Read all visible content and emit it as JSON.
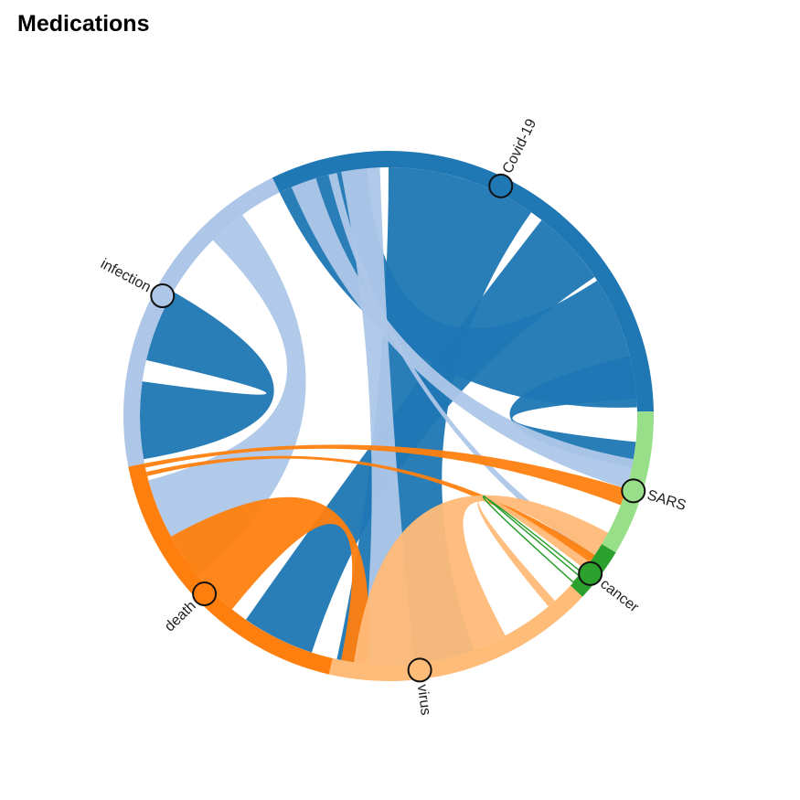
{
  "title": "Medications",
  "colors": {
    "Covid-19": "#1f77b4",
    "infection": "#aec7e8",
    "death": "#ff7f0e",
    "virus": "#ffbb78",
    "cancer": "#2ca02c",
    "SARS": "#98df8a"
  },
  "chart_data": {
    "type": "chord",
    "nodes": [
      {
        "name": "Covid-19"
      },
      {
        "name": "SARS"
      },
      {
        "name": "cancer"
      },
      {
        "name": "virus"
      },
      {
        "name": "death"
      },
      {
        "name": "infection"
      }
    ],
    "links": [
      {
        "source": "Covid-19",
        "target": "Covid-19"
      },
      {
        "source": "Covid-19",
        "target": "SARS"
      },
      {
        "source": "Covid-19",
        "target": "virus"
      },
      {
        "source": "Covid-19",
        "target": "death"
      },
      {
        "source": "Covid-19",
        "target": "infection"
      },
      {
        "source": "infection",
        "target": "SARS"
      },
      {
        "source": "infection",
        "target": "cancer"
      },
      {
        "source": "infection",
        "target": "virus"
      },
      {
        "source": "infection",
        "target": "death"
      },
      {
        "source": "death",
        "target": "SARS"
      },
      {
        "source": "death",
        "target": "cancer"
      },
      {
        "source": "death",
        "target": "virus"
      },
      {
        "source": "virus",
        "target": "SARS"
      },
      {
        "source": "virus",
        "target": "cancer"
      },
      {
        "source": "cancer",
        "target": "cancer"
      }
    ]
  }
}
